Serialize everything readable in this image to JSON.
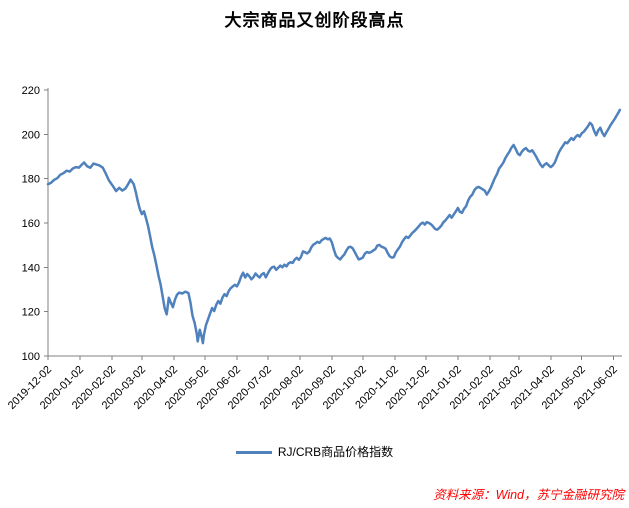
{
  "header": {
    "title": "大宗商品又创阶段高点"
  },
  "legend": {
    "label": "RJ/CRB商品价格指数"
  },
  "footer": {
    "source": "资料来源：Wind，苏宁金融研究院"
  },
  "colors": {
    "line": "#4f81bd",
    "axis": "#808080",
    "source_text": "#ff0000",
    "title_text": "#000000"
  },
  "chart_data": {
    "type": "line",
    "title": "大宗商品又创阶段高点",
    "xlabel": "",
    "ylabel": "",
    "grid": false,
    "legend_position": "bottom",
    "legend_entries": [
      "RJ/CRB商品价格指数"
    ],
    "ylim": [
      100,
      220
    ],
    "yticks": [
      100,
      120,
      140,
      160,
      180,
      200,
      220
    ],
    "x_axis_type": "date",
    "x_start_date": "2019-12-02",
    "x_span_days": 556,
    "xticks": [
      {
        "day": 0,
        "label": "2019-12-02"
      },
      {
        "day": 31,
        "label": "2020-01-02"
      },
      {
        "day": 62,
        "label": "2020-02-02"
      },
      {
        "day": 91,
        "label": "2020-03-02"
      },
      {
        "day": 122,
        "label": "2020-04-02"
      },
      {
        "day": 152,
        "label": "2020-05-02"
      },
      {
        "day": 183,
        "label": "2020-06-02"
      },
      {
        "day": 213,
        "label": "2020-07-02"
      },
      {
        "day": 244,
        "label": "2020-08-02"
      },
      {
        "day": 275,
        "label": "2020-09-02"
      },
      {
        "day": 305,
        "label": "2020-10-02"
      },
      {
        "day": 336,
        "label": "2020-11-02"
      },
      {
        "day": 366,
        "label": "2020-12-02"
      },
      {
        "day": 397,
        "label": "2021-01-02"
      },
      {
        "day": 428,
        "label": "2021-02-02"
      },
      {
        "day": 456,
        "label": "2021-03-02"
      },
      {
        "day": 487,
        "label": "2021-04-02"
      },
      {
        "day": 517,
        "label": "2021-05-02"
      },
      {
        "day": 548,
        "label": "2021-06-02"
      }
    ],
    "series": [
      {
        "name": "RJ/CRB商品价格指数",
        "color": "#4f81bd",
        "points": [
          [
            0,
            177.5
          ],
          [
            3,
            178.2
          ],
          [
            6,
            179.5
          ],
          [
            9,
            180.2
          ],
          [
            12,
            181.8
          ],
          [
            15,
            182.5
          ],
          [
            18,
            183.6
          ],
          [
            21,
            183.2
          ],
          [
            24,
            184.6
          ],
          [
            27,
            185.2
          ],
          [
            30,
            185.0
          ],
          [
            33,
            186.5
          ],
          [
            35,
            187.3
          ],
          [
            38,
            185.6
          ],
          [
            41,
            184.9
          ],
          [
            44,
            186.8
          ],
          [
            47,
            186.4
          ],
          [
            50,
            185.9
          ],
          [
            53,
            185.0
          ],
          [
            56,
            182.3
          ],
          [
            59,
            179.2
          ],
          [
            63,
            176.6
          ],
          [
            66,
            174.4
          ],
          [
            69,
            175.9
          ],
          [
            72,
            174.6
          ],
          [
            75,
            175.5
          ],
          [
            78,
            177.8
          ],
          [
            80,
            179.6
          ],
          [
            83,
            177.5
          ],
          [
            85,
            174.0
          ],
          [
            87,
            169.8
          ],
          [
            89,
            166.2
          ],
          [
            91,
            164.0
          ],
          [
            93,
            165.3
          ],
          [
            95,
            162.0
          ],
          [
            97,
            158.5
          ],
          [
            99,
            153.8
          ],
          [
            101,
            148.9
          ],
          [
            103,
            145.5
          ],
          [
            105,
            141.0
          ],
          [
            107,
            136.2
          ],
          [
            109,
            132.5
          ],
          [
            111,
            127.0
          ],
          [
            113,
            121.5
          ],
          [
            115,
            118.8
          ],
          [
            117,
            126.3
          ],
          [
            119,
            124.0
          ],
          [
            121,
            122.0
          ],
          [
            123,
            125.5
          ],
          [
            125,
            127.6
          ],
          [
            127,
            128.6
          ],
          [
            130,
            128.2
          ],
          [
            133,
            129.0
          ],
          [
            136,
            128.4
          ],
          [
            138,
            124.0
          ],
          [
            140,
            118.2
          ],
          [
            142,
            115.0
          ],
          [
            144,
            110.2
          ],
          [
            145,
            106.6
          ],
          [
            147,
            111.8
          ],
          [
            149,
            108.4
          ],
          [
            150,
            105.8
          ],
          [
            151,
            109.5
          ],
          [
            153,
            114.0
          ],
          [
            155,
            116.5
          ],
          [
            157,
            119.2
          ],
          [
            159,
            121.6
          ],
          [
            161,
            120.3
          ],
          [
            163,
            123.2
          ],
          [
            165,
            124.8
          ],
          [
            167,
            123.6
          ],
          [
            169,
            126.4
          ],
          [
            171,
            127.9
          ],
          [
            173,
            127.0
          ],
          [
            175,
            129.3
          ],
          [
            177,
            130.6
          ],
          [
            179,
            131.4
          ],
          [
            181,
            132.1
          ],
          [
            183,
            131.4
          ],
          [
            185,
            133.2
          ],
          [
            187,
            135.8
          ],
          [
            189,
            137.6
          ],
          [
            191,
            135.4
          ],
          [
            193,
            137.0
          ],
          [
            195,
            136.0
          ],
          [
            197,
            134.6
          ],
          [
            199,
            135.5
          ],
          [
            201,
            137.2
          ],
          [
            203,
            136.2
          ],
          [
            205,
            135.4
          ],
          [
            207,
            136.8
          ],
          [
            209,
            137.4
          ],
          [
            211,
            135.5
          ],
          [
            213,
            137.3
          ],
          [
            215,
            139.0
          ],
          [
            217,
            140.0
          ],
          [
            219,
            140.3
          ],
          [
            221,
            138.9
          ],
          [
            223,
            139.8
          ],
          [
            225,
            140.8
          ],
          [
            227,
            140.0
          ],
          [
            229,
            141.2
          ],
          [
            231,
            140.4
          ],
          [
            233,
            141.8
          ],
          [
            235,
            142.3
          ],
          [
            237,
            142.0
          ],
          [
            239,
            143.5
          ],
          [
            241,
            144.3
          ],
          [
            243,
            143.4
          ],
          [
            245,
            144.6
          ],
          [
            247,
            147.2
          ],
          [
            249,
            146.8
          ],
          [
            251,
            146.3
          ],
          [
            253,
            147.0
          ],
          [
            255,
            149.0
          ],
          [
            257,
            150.2
          ],
          [
            259,
            150.8
          ],
          [
            261,
            151.5
          ],
          [
            263,
            151.0
          ],
          [
            265,
            152.2
          ],
          [
            267,
            152.8
          ],
          [
            269,
            153.3
          ],
          [
            271,
            152.6
          ],
          [
            273,
            153.0
          ],
          [
            275,
            151.2
          ],
          [
            277,
            147.8
          ],
          [
            279,
            145.2
          ],
          [
            281,
            144.2
          ],
          [
            283,
            143.6
          ],
          [
            285,
            144.8
          ],
          [
            287,
            145.8
          ],
          [
            289,
            147.6
          ],
          [
            291,
            149.0
          ],
          [
            293,
            149.3
          ],
          [
            295,
            148.6
          ],
          [
            297,
            147.0
          ],
          [
            299,
            145.2
          ],
          [
            301,
            143.6
          ],
          [
            303,
            143.9
          ],
          [
            305,
            144.5
          ],
          [
            307,
            146.2
          ],
          [
            309,
            146.9
          ],
          [
            311,
            146.5
          ],
          [
            313,
            146.9
          ],
          [
            315,
            147.6
          ],
          [
            317,
            148.2
          ],
          [
            319,
            149.8
          ],
          [
            321,
            150.1
          ],
          [
            323,
            149.3
          ],
          [
            325,
            149.0
          ],
          [
            327,
            148.4
          ],
          [
            329,
            146.4
          ],
          [
            331,
            145.0
          ],
          [
            333,
            144.4
          ],
          [
            335,
            144.6
          ],
          [
            337,
            146.8
          ],
          [
            339,
            148.2
          ],
          [
            341,
            149.4
          ],
          [
            343,
            151.4
          ],
          [
            345,
            152.8
          ],
          [
            347,
            153.8
          ],
          [
            349,
            153.3
          ],
          [
            351,
            154.4
          ],
          [
            353,
            155.6
          ],
          [
            355,
            156.4
          ],
          [
            357,
            157.4
          ],
          [
            359,
            158.4
          ],
          [
            361,
            159.6
          ],
          [
            363,
            160.2
          ],
          [
            365,
            159.3
          ],
          [
            367,
            160.4
          ],
          [
            369,
            160.0
          ],
          [
            371,
            159.4
          ],
          [
            373,
            158.4
          ],
          [
            375,
            157.3
          ],
          [
            377,
            157.0
          ],
          [
            379,
            157.8
          ],
          [
            381,
            158.8
          ],
          [
            383,
            160.3
          ],
          [
            385,
            161.2
          ],
          [
            387,
            162.4
          ],
          [
            389,
            163.6
          ],
          [
            391,
            162.4
          ],
          [
            393,
            163.8
          ],
          [
            395,
            165.2
          ],
          [
            397,
            166.8
          ],
          [
            399,
            165.0
          ],
          [
            401,
            164.6
          ],
          [
            403,
            166.4
          ],
          [
            405,
            167.6
          ],
          [
            407,
            170.2
          ],
          [
            409,
            171.8
          ],
          [
            411,
            172.8
          ],
          [
            413,
            174.8
          ],
          [
            415,
            175.9
          ],
          [
            417,
            176.3
          ],
          [
            419,
            175.8
          ],
          [
            421,
            175.2
          ],
          [
            423,
            174.6
          ],
          [
            425,
            172.8
          ],
          [
            427,
            174.2
          ],
          [
            429,
            176.0
          ],
          [
            431,
            178.3
          ],
          [
            433,
            180.4
          ],
          [
            435,
            182.2
          ],
          [
            437,
            184.6
          ],
          [
            439,
            185.8
          ],
          [
            441,
            187.2
          ],
          [
            443,
            189.2
          ],
          [
            445,
            190.8
          ],
          [
            447,
            192.2
          ],
          [
            449,
            194.0
          ],
          [
            451,
            195.2
          ],
          [
            453,
            193.4
          ],
          [
            455,
            191.4
          ],
          [
            457,
            190.6
          ],
          [
            459,
            192.2
          ],
          [
            461,
            193.2
          ],
          [
            463,
            193.8
          ],
          [
            465,
            192.6
          ],
          [
            467,
            192.2
          ],
          [
            469,
            192.8
          ],
          [
            471,
            191.4
          ],
          [
            473,
            189.8
          ],
          [
            475,
            188.0
          ],
          [
            477,
            186.4
          ],
          [
            479,
            185.2
          ],
          [
            481,
            186.4
          ],
          [
            483,
            187.0
          ],
          [
            485,
            186.0
          ],
          [
            487,
            185.2
          ],
          [
            489,
            186.0
          ],
          [
            491,
            187.4
          ],
          [
            493,
            189.8
          ],
          [
            495,
            192.0
          ],
          [
            497,
            193.6
          ],
          [
            499,
            195.0
          ],
          [
            501,
            196.4
          ],
          [
            503,
            196.0
          ],
          [
            505,
            197.2
          ],
          [
            507,
            198.3
          ],
          [
            509,
            197.5
          ],
          [
            511,
            198.8
          ],
          [
            513,
            199.7
          ],
          [
            515,
            199.0
          ],
          [
            517,
            200.4
          ],
          [
            519,
            201.2
          ],
          [
            521,
            202.4
          ],
          [
            523,
            203.6
          ],
          [
            525,
            205.2
          ],
          [
            527,
            204.2
          ],
          [
            529,
            201.6
          ],
          [
            531,
            199.6
          ],
          [
            533,
            201.8
          ],
          [
            535,
            203.0
          ],
          [
            537,
            200.6
          ],
          [
            539,
            199.2
          ],
          [
            541,
            201.0
          ],
          [
            543,
            202.6
          ],
          [
            545,
            204.2
          ],
          [
            547,
            205.6
          ],
          [
            549,
            207.0
          ],
          [
            551,
            208.6
          ],
          [
            553,
            210.2
          ],
          [
            554,
            211.0
          ]
        ]
      }
    ]
  }
}
